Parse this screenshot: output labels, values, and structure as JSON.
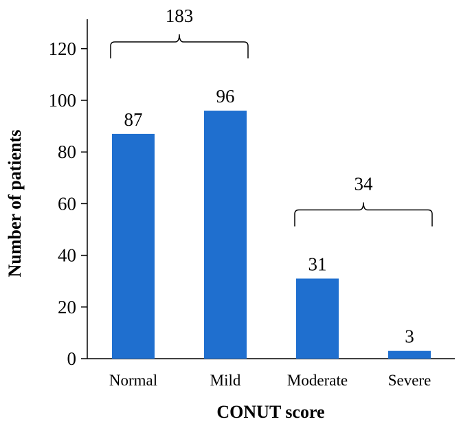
{
  "chart_data": {
    "type": "bar",
    "categories": [
      "Normal",
      "Mild",
      "Moderate",
      "Severe"
    ],
    "values": [
      87,
      96,
      31,
      3
    ],
    "data_labels": [
      "87",
      "96",
      "31",
      "3"
    ],
    "xlabel": "CONUT score",
    "ylabel": "Number of patients",
    "ylim": [
      0,
      130
    ],
    "yticks": [
      0,
      20,
      40,
      60,
      80,
      100,
      120
    ],
    "grid": false,
    "bar_color": "#1f6fcf",
    "annotations": [
      {
        "type": "bracket",
        "from": "Normal",
        "to": "Mild",
        "label": "183"
      },
      {
        "type": "bracket",
        "from": "Moderate",
        "to": "Severe",
        "label": "34"
      }
    ]
  }
}
